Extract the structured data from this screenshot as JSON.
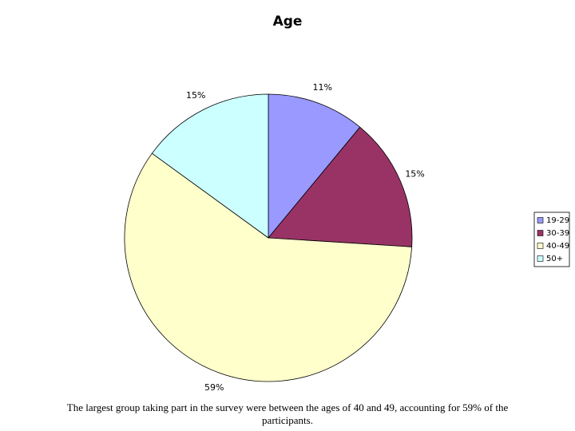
{
  "chart_data": {
    "type": "pie",
    "title": "Age",
    "categories": [
      "19-29",
      "30-39",
      "40-49",
      "50+"
    ],
    "values": [
      11,
      15,
      59,
      15
    ],
    "value_labels": [
      "11%",
      "15%",
      "59%",
      "15%"
    ],
    "colors": [
      "#9999ff",
      "#993366",
      "#ffffcc",
      "#ccffff"
    ],
    "legend": "right"
  },
  "caption": "The largest group taking part in the survey were between the ages of 40 and 49, accounting for 59% of the participants."
}
